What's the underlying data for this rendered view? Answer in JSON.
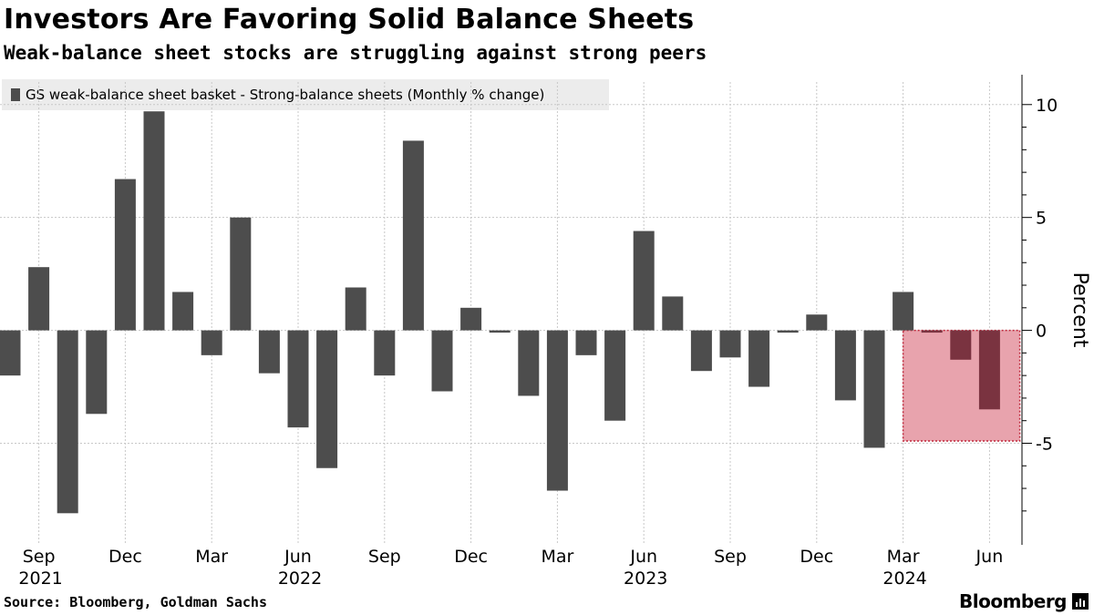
{
  "header": {
    "title": "Investors Are Favoring Solid Balance Sheets",
    "subtitle": "Weak-balance sheet stocks are struggling against strong peers"
  },
  "footer": {
    "source": "Source: Bloomberg, Goldman Sachs",
    "brand": "Bloomberg"
  },
  "colors": {
    "bar": "#4d4d4d",
    "bar_highlight": "#7a3340",
    "highlight_fill": "#e8a3ad",
    "highlight_border": "#c0283c",
    "grid": "#c8c8c8"
  },
  "chart_data": {
    "type": "bar",
    "title": "Investors Are Favoring Solid Balance Sheets",
    "legend": "GS weak-balance sheet basket - Strong-balance sheets (Monthly % change)",
    "ylabel": "Percent",
    "ylim": [
      -9.5,
      11
    ],
    "yticks": [
      10,
      5,
      0,
      -5
    ],
    "grid": true,
    "categories": [
      "2021-08",
      "2021-09",
      "2021-10",
      "2021-11",
      "2021-12",
      "2022-01",
      "2022-02",
      "2022-03",
      "2022-04",
      "2022-05",
      "2022-06",
      "2022-07",
      "2022-08",
      "2022-09",
      "2022-10",
      "2022-11",
      "2022-12",
      "2023-01",
      "2023-02",
      "2023-03",
      "2023-04",
      "2023-05",
      "2023-06",
      "2023-07",
      "2023-08",
      "2023-09",
      "2023-10",
      "2023-11",
      "2023-12",
      "2024-01",
      "2024-02",
      "2024-03",
      "2024-04",
      "2024-05",
      "2024-06"
    ],
    "values": [
      -2.0,
      2.8,
      -8.1,
      -3.7,
      6.7,
      9.7,
      1.7,
      -1.1,
      5.0,
      -1.9,
      -4.3,
      -6.1,
      1.9,
      -2.0,
      8.4,
      -2.7,
      1.0,
      -0.1,
      -2.9,
      -7.1,
      -1.1,
      -4.0,
      4.4,
      1.5,
      -1.8,
      -1.2,
      -2.5,
      -0.1,
      0.7,
      -3.1,
      -5.2,
      1.7,
      -0.1,
      -1.3,
      -3.5
    ],
    "highlighted": [
      "2024-04",
      "2024-05",
      "2024-06"
    ],
    "highlight_region": {
      "from": "2024-03",
      "to": "2024-06",
      "ymin": -4.9,
      "ymax": 0
    },
    "x_tick_labels": [
      {
        "month": "Sep",
        "year": "2021",
        "category": "2021-09"
      },
      {
        "month": "Dec",
        "year": "",
        "category": "2021-12"
      },
      {
        "month": "Mar",
        "year": "",
        "category": "2022-03"
      },
      {
        "month": "Jun",
        "year": "2022",
        "category": "2022-06"
      },
      {
        "month": "Sep",
        "year": "",
        "category": "2022-09"
      },
      {
        "month": "Dec",
        "year": "",
        "category": "2022-12"
      },
      {
        "month": "Mar",
        "year": "",
        "category": "2023-03"
      },
      {
        "month": "Jun",
        "year": "2023",
        "category": "2023-06"
      },
      {
        "month": "Sep",
        "year": "",
        "category": "2023-09"
      },
      {
        "month": "Dec",
        "year": "",
        "category": "2023-12"
      },
      {
        "month": "Mar",
        "year": "2024",
        "category": "2024-03"
      },
      {
        "month": "Jun",
        "year": "",
        "category": "2024-06"
      }
    ]
  }
}
